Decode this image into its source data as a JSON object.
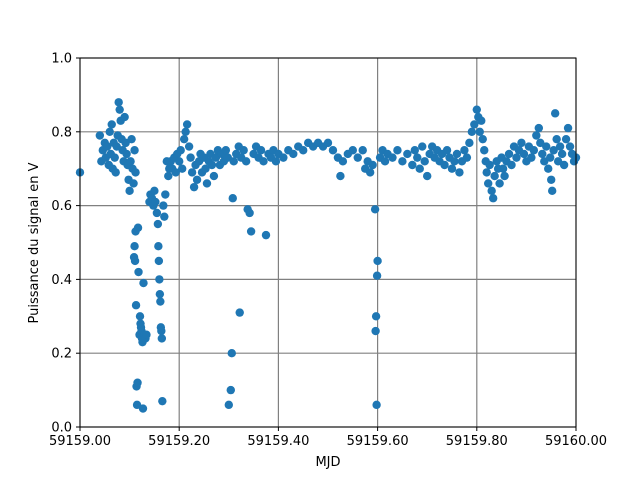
{
  "chart_data": {
    "type": "scatter",
    "title": "",
    "xlabel": "MJD",
    "ylabel": "Puissance du signal en V",
    "xlim": [
      59159.0,
      59160.0
    ],
    "ylim": [
      0.0,
      1.0
    ],
    "x_ticks": [
      59159.0,
      59159.2,
      59159.4,
      59159.6,
      59159.8,
      59160.0
    ],
    "x_tick_labels": [
      "59159.00",
      "59159.20",
      "59159.40",
      "59159.60",
      "59159.80",
      "59160.00"
    ],
    "y_ticks": [
      0.0,
      0.2,
      0.4,
      0.6,
      0.8,
      1.0
    ],
    "y_tick_labels": [
      "0.0",
      "0.2",
      "0.4",
      "0.6",
      "0.8",
      "1.0"
    ],
    "grid": true,
    "grid_color": "#808080",
    "marker_color": "#1f77b4",
    "series": [
      {
        "points": [
          [
            59159.0,
            0.69
          ],
          [
            59159.04,
            0.79
          ],
          [
            59159.043,
            0.72
          ],
          [
            59159.046,
            0.75
          ],
          [
            59159.05,
            0.77
          ],
          [
            59159.052,
            0.73
          ],
          [
            59159.055,
            0.76
          ],
          [
            59159.058,
            0.71
          ],
          [
            59159.06,
            0.8
          ],
          [
            59159.062,
            0.74
          ],
          [
            59159.064,
            0.82
          ],
          [
            59159.066,
            0.7
          ],
          [
            59159.068,
            0.77
          ],
          [
            59159.07,
            0.73
          ],
          [
            59159.072,
            0.69
          ],
          [
            59159.074,
            0.76
          ],
          [
            59159.076,
            0.79
          ],
          [
            59159.078,
            0.88
          ],
          [
            59159.08,
            0.86
          ],
          [
            59159.082,
            0.83
          ],
          [
            59159.084,
            0.78
          ],
          [
            59159.086,
            0.75
          ],
          [
            59159.088,
            0.72
          ],
          [
            59159.09,
            0.84
          ],
          [
            59159.092,
            0.77
          ],
          [
            59159.094,
            0.74
          ],
          [
            59159.096,
            0.71
          ],
          [
            59159.098,
            0.67
          ],
          [
            59159.1,
            0.64
          ],
          [
            59159.102,
            0.72
          ],
          [
            59159.104,
            0.78
          ],
          [
            59159.106,
            0.7
          ],
          [
            59159.108,
            0.66
          ],
          [
            59159.11,
            0.75
          ],
          [
            59159.112,
            0.69
          ],
          [
            59159.109,
            0.46
          ],
          [
            59159.11,
            0.49
          ],
          [
            59159.111,
            0.45
          ],
          [
            59159.112,
            0.53
          ],
          [
            59159.113,
            0.33
          ],
          [
            59159.114,
            0.11
          ],
          [
            59159.115,
            0.06
          ],
          [
            59159.116,
            0.12
          ],
          [
            59159.117,
            0.54
          ],
          [
            59159.118,
            0.42
          ],
          [
            59159.12,
            0.25
          ],
          [
            59159.121,
            0.3
          ],
          [
            59159.122,
            0.28
          ],
          [
            59159.123,
            0.27
          ],
          [
            59159.124,
            0.26
          ],
          [
            59159.125,
            0.24
          ],
          [
            59159.126,
            0.23
          ],
          [
            59159.127,
            0.05
          ],
          [
            59159.128,
            0.39
          ],
          [
            59159.13,
            0.25
          ],
          [
            59159.132,
            0.24
          ],
          [
            59159.134,
            0.25
          ],
          [
            59159.14,
            0.61
          ],
          [
            59159.142,
            0.63
          ],
          [
            59159.145,
            0.62
          ],
          [
            59159.148,
            0.6
          ],
          [
            59159.15,
            0.64
          ],
          [
            59159.152,
            0.61
          ],
          [
            59159.155,
            0.58
          ],
          [
            59159.157,
            0.55
          ],
          [
            59159.158,
            0.49
          ],
          [
            59159.159,
            0.45
          ],
          [
            59159.16,
            0.4
          ],
          [
            59159.161,
            0.36
          ],
          [
            59159.162,
            0.34
          ],
          [
            59159.163,
            0.27
          ],
          [
            59159.164,
            0.26
          ],
          [
            59159.165,
            0.24
          ],
          [
            59159.166,
            0.07
          ],
          [
            59159.168,
            0.6
          ],
          [
            59159.17,
            0.57
          ],
          [
            59159.172,
            0.63
          ],
          [
            59159.175,
            0.72
          ],
          [
            59159.178,
            0.68
          ],
          [
            59159.18,
            0.7
          ],
          [
            59159.183,
            0.72
          ],
          [
            59159.186,
            0.7
          ],
          [
            59159.19,
            0.73
          ],
          [
            59159.193,
            0.69
          ],
          [
            59159.196,
            0.74
          ],
          [
            59159.2,
            0.72
          ],
          [
            59159.203,
            0.75
          ],
          [
            59159.206,
            0.7
          ],
          [
            59159.21,
            0.78
          ],
          [
            59159.213,
            0.8
          ],
          [
            59159.216,
            0.82
          ],
          [
            59159.22,
            0.76
          ],
          [
            59159.223,
            0.73
          ],
          [
            59159.226,
            0.69
          ],
          [
            59159.23,
            0.65
          ],
          [
            59159.233,
            0.71
          ],
          [
            59159.236,
            0.67
          ],
          [
            59159.24,
            0.72
          ],
          [
            59159.243,
            0.74
          ],
          [
            59159.246,
            0.69
          ],
          [
            59159.25,
            0.73
          ],
          [
            59159.253,
            0.7
          ],
          [
            59159.256,
            0.66
          ],
          [
            59159.26,
            0.72
          ],
          [
            59159.263,
            0.74
          ],
          [
            59159.266,
            0.71
          ],
          [
            59159.27,
            0.68
          ],
          [
            59159.274,
            0.73
          ],
          [
            59159.278,
            0.75
          ],
          [
            59159.282,
            0.71
          ],
          [
            59159.286,
            0.74
          ],
          [
            59159.29,
            0.72
          ],
          [
            59159.294,
            0.75
          ],
          [
            59159.298,
            0.73
          ],
          [
            59159.3,
            0.06
          ],
          [
            59159.304,
            0.1
          ],
          [
            59159.306,
            0.2
          ],
          [
            59159.308,
            0.62
          ],
          [
            59159.31,
            0.72
          ],
          [
            59159.315,
            0.74
          ],
          [
            59159.32,
            0.76
          ],
          [
            59159.322,
            0.31
          ],
          [
            59159.325,
            0.73
          ],
          [
            59159.33,
            0.75
          ],
          [
            59159.335,
            0.72
          ],
          [
            59159.338,
            0.59
          ],
          [
            59159.342,
            0.58
          ],
          [
            59159.345,
            0.53
          ],
          [
            59159.35,
            0.74
          ],
          [
            59159.355,
            0.76
          ],
          [
            59159.36,
            0.73
          ],
          [
            59159.365,
            0.75
          ],
          [
            59159.37,
            0.72
          ],
          [
            59159.375,
            0.52
          ],
          [
            59159.38,
            0.74
          ],
          [
            59159.385,
            0.73
          ],
          [
            59159.39,
            0.75
          ],
          [
            59159.395,
            0.72
          ],
          [
            59159.4,
            0.74
          ],
          [
            59159.41,
            0.73
          ],
          [
            59159.42,
            0.75
          ],
          [
            59159.43,
            0.74
          ],
          [
            59159.44,
            0.76
          ],
          [
            59159.45,
            0.75
          ],
          [
            59159.46,
            0.77
          ],
          [
            59159.47,
            0.76
          ],
          [
            59159.48,
            0.77
          ],
          [
            59159.49,
            0.76
          ],
          [
            59159.5,
            0.77
          ],
          [
            59159.51,
            0.75
          ],
          [
            59159.52,
            0.73
          ],
          [
            59159.525,
            0.68
          ],
          [
            59159.53,
            0.72
          ],
          [
            59159.54,
            0.74
          ],
          [
            59159.55,
            0.75
          ],
          [
            59159.56,
            0.73
          ],
          [
            59159.57,
            0.75
          ],
          [
            59159.575,
            0.7
          ],
          [
            59159.58,
            0.72
          ],
          [
            59159.585,
            0.69
          ],
          [
            59159.59,
            0.71
          ],
          [
            59159.595,
            0.59
          ],
          [
            59159.596,
            0.26
          ],
          [
            59159.597,
            0.3
          ],
          [
            59159.598,
            0.06
          ],
          [
            59159.599,
            0.41
          ],
          [
            59159.6,
            0.45
          ],
          [
            59159.605,
            0.73
          ],
          [
            59159.61,
            0.75
          ],
          [
            59159.615,
            0.72
          ],
          [
            59159.62,
            0.74
          ],
          [
            59159.63,
            0.73
          ],
          [
            59159.64,
            0.75
          ],
          [
            59159.65,
            0.72
          ],
          [
            59159.66,
            0.74
          ],
          [
            59159.67,
            0.71
          ],
          [
            59159.675,
            0.75
          ],
          [
            59159.68,
            0.73
          ],
          [
            59159.685,
            0.7
          ],
          [
            59159.69,
            0.76
          ],
          [
            59159.695,
            0.72
          ],
          [
            59159.7,
            0.68
          ],
          [
            59159.705,
            0.74
          ],
          [
            59159.71,
            0.76
          ],
          [
            59159.715,
            0.73
          ],
          [
            59159.72,
            0.75
          ],
          [
            59159.725,
            0.72
          ],
          [
            59159.73,
            0.74
          ],
          [
            59159.735,
            0.71
          ],
          [
            59159.74,
            0.75
          ],
          [
            59159.745,
            0.73
          ],
          [
            59159.75,
            0.7
          ],
          [
            59159.755,
            0.72
          ],
          [
            59159.76,
            0.74
          ],
          [
            59159.765,
            0.69
          ],
          [
            59159.77,
            0.72
          ],
          [
            59159.775,
            0.75
          ],
          [
            59159.78,
            0.73
          ],
          [
            59159.785,
            0.77
          ],
          [
            59159.79,
            0.8
          ],
          [
            59159.795,
            0.82
          ],
          [
            59159.8,
            0.86
          ],
          [
            59159.803,
            0.84
          ],
          [
            59159.806,
            0.8
          ],
          [
            59159.809,
            0.83
          ],
          [
            59159.812,
            0.78
          ],
          [
            59159.815,
            0.75
          ],
          [
            59159.818,
            0.72
          ],
          [
            59159.82,
            0.69
          ],
          [
            59159.823,
            0.66
          ],
          [
            59159.826,
            0.71
          ],
          [
            59159.83,
            0.64
          ],
          [
            59159.833,
            0.62
          ],
          [
            59159.836,
            0.68
          ],
          [
            59159.84,
            0.72
          ],
          [
            59159.843,
            0.7
          ],
          [
            59159.846,
            0.66
          ],
          [
            59159.85,
            0.73
          ],
          [
            59159.853,
            0.7
          ],
          [
            59159.856,
            0.68
          ],
          [
            59159.86,
            0.72
          ],
          [
            59159.865,
            0.74
          ],
          [
            59159.87,
            0.71
          ],
          [
            59159.875,
            0.76
          ],
          [
            59159.88,
            0.73
          ],
          [
            59159.885,
            0.75
          ],
          [
            59159.89,
            0.77
          ],
          [
            59159.895,
            0.74
          ],
          [
            59159.9,
            0.72
          ],
          [
            59159.905,
            0.76
          ],
          [
            59159.91,
            0.73
          ],
          [
            59159.915,
            0.75
          ],
          [
            59159.92,
            0.79
          ],
          [
            59159.925,
            0.81
          ],
          [
            59159.928,
            0.77
          ],
          [
            59159.932,
            0.74
          ],
          [
            59159.936,
            0.72
          ],
          [
            59159.94,
            0.76
          ],
          [
            59159.944,
            0.7
          ],
          [
            59159.948,
            0.73
          ],
          [
            59159.95,
            0.67
          ],
          [
            59159.952,
            0.64
          ],
          [
            59159.955,
            0.75
          ],
          [
            59159.958,
            0.85
          ],
          [
            59159.961,
            0.78
          ],
          [
            59159.964,
            0.72
          ],
          [
            59159.968,
            0.76
          ],
          [
            59159.972,
            0.74
          ],
          [
            59159.976,
            0.71
          ],
          [
            59159.98,
            0.78
          ],
          [
            59159.984,
            0.81
          ],
          [
            59159.988,
            0.76
          ],
          [
            59159.992,
            0.74
          ],
          [
            59159.996,
            0.72
          ],
          [
            59160.0,
            0.73
          ]
        ]
      }
    ]
  }
}
